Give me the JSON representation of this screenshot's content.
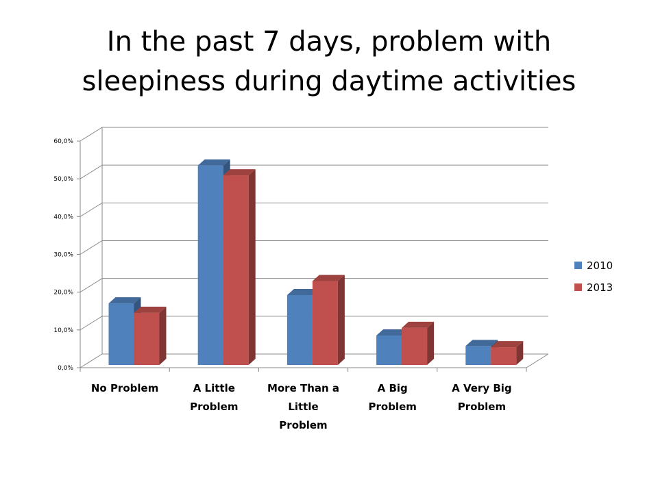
{
  "title_lines": [
    "In the past 7 days, problem with",
    "sleepiness during daytime activities"
  ],
  "chart_data": {
    "type": "bar",
    "title": "In the past 7 days, problem with sleepiness during daytime activities",
    "categories": [
      [
        "No Problem"
      ],
      [
        "A Little",
        "Problem"
      ],
      [
        "More Than a",
        "Little",
        "Problem"
      ],
      [
        "A Big",
        "Problem"
      ],
      [
        "A Very Big",
        "Problem"
      ]
    ],
    "series": [
      {
        "name": "2010",
        "color": "#4F81BD",
        "values": [
          16.3,
          52.8,
          18.5,
          7.8,
          5.0
        ]
      },
      {
        "name": "2013",
        "color": "#C0504D",
        "values": [
          13.8,
          50.2,
          22.2,
          9.8,
          4.7
        ]
      }
    ],
    "ylim": [
      0,
      60
    ],
    "yticks": [
      "0,0%",
      "10,0%",
      "20,0%",
      "30,0%",
      "40,0%",
      "50,0%",
      "60,0%"
    ],
    "grid": true,
    "legend": "right",
    "style": "3d-clustered-column"
  }
}
